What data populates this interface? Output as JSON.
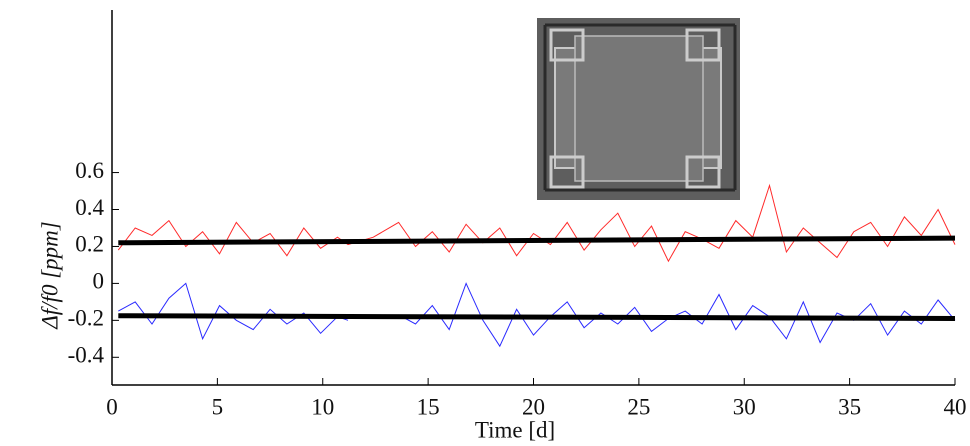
{
  "chart_data": {
    "type": "line",
    "x_label": "Time [d]",
    "y_label": "Δf/f0 [ppm]",
    "xlim": [
      0,
      40
    ],
    "xticks": [
      0,
      5,
      10,
      15,
      20,
      25,
      30,
      35,
      40
    ],
    "ylim": [
      -0.55,
      1.48
    ],
    "yticks": [
      -0.4,
      -0.2,
      0,
      0.2,
      0.4,
      0.6
    ],
    "series": [
      {
        "color": "#ff2a2a",
        "line_width": 1,
        "x": [
          0.3,
          1.1,
          1.9,
          2.7,
          3.5,
          4.3,
          5.1,
          5.9,
          6.7,
          7.5,
          8.3,
          9.1,
          9.9,
          10.7,
          11.2,
          12.4,
          13.6,
          14.4,
          15.2,
          16.0,
          16.8,
          17.6,
          18.4,
          19.2,
          20.0,
          20.8,
          21.6,
          22.4,
          23.2,
          24.0,
          24.8,
          25.6,
          26.4,
          27.2,
          28.0,
          28.8,
          29.6,
          30.4,
          31.2,
          32.0,
          32.8,
          33.6,
          34.4,
          35.2,
          36.0,
          36.8,
          37.6,
          38.4,
          39.2,
          40.0
        ],
        "values": [
          0.18,
          0.3,
          0.26,
          0.34,
          0.2,
          0.28,
          0.16,
          0.33,
          0.22,
          0.27,
          0.15,
          0.3,
          0.19,
          0.25,
          0.21,
          0.25,
          0.33,
          0.2,
          0.28,
          0.17,
          0.32,
          0.22,
          0.3,
          0.15,
          0.27,
          0.21,
          0.33,
          0.18,
          0.29,
          0.38,
          0.2,
          0.31,
          0.12,
          0.28,
          0.24,
          0.19,
          0.34,
          0.25,
          0.53,
          0.17,
          0.3,
          0.22,
          0.14,
          0.28,
          0.33,
          0.2,
          0.36,
          0.26,
          0.4,
          0.21
        ]
      },
      {
        "color": "#2a2aff",
        "line_width": 1,
        "x": [
          0.3,
          1.1,
          1.9,
          2.7,
          3.5,
          4.3,
          5.1,
          5.9,
          6.7,
          7.5,
          8.3,
          9.1,
          9.9,
          10.7,
          11.2,
          12.4,
          13.6,
          14.4,
          15.2,
          16.0,
          16.8,
          17.6,
          18.4,
          19.2,
          20.0,
          20.8,
          21.6,
          22.4,
          23.2,
          24.0,
          24.8,
          25.6,
          26.4,
          27.2,
          28.0,
          28.8,
          29.6,
          30.4,
          31.2,
          32.0,
          32.8,
          33.6,
          34.4,
          35.2,
          36.0,
          36.8,
          37.6,
          38.4,
          39.2,
          40.0
        ],
        "values": [
          -0.15,
          -0.1,
          -0.22,
          -0.08,
          0.0,
          -0.3,
          -0.12,
          -0.2,
          -0.25,
          -0.14,
          -0.22,
          -0.16,
          -0.27,
          -0.18,
          -0.2,
          null,
          -0.17,
          -0.22,
          -0.12,
          -0.25,
          0.0,
          -0.2,
          -0.34,
          -0.14,
          -0.28,
          -0.18,
          -0.1,
          -0.24,
          -0.16,
          -0.22,
          -0.13,
          -0.26,
          -0.19,
          -0.15,
          -0.22,
          -0.06,
          -0.25,
          -0.12,
          -0.18,
          -0.3,
          -0.1,
          -0.32,
          -0.16,
          -0.2,
          -0.11,
          -0.28,
          -0.15,
          -0.22,
          -0.09,
          -0.2
        ]
      },
      {
        "color": "#000000",
        "line_width": 5,
        "x": [
          0.3,
          40
        ],
        "values": [
          0.22,
          0.245
        ]
      },
      {
        "color": "#000000",
        "line_width": 5,
        "x": [
          0.3,
          40
        ],
        "values": [
          -0.175,
          -0.19
        ]
      }
    ]
  }
}
